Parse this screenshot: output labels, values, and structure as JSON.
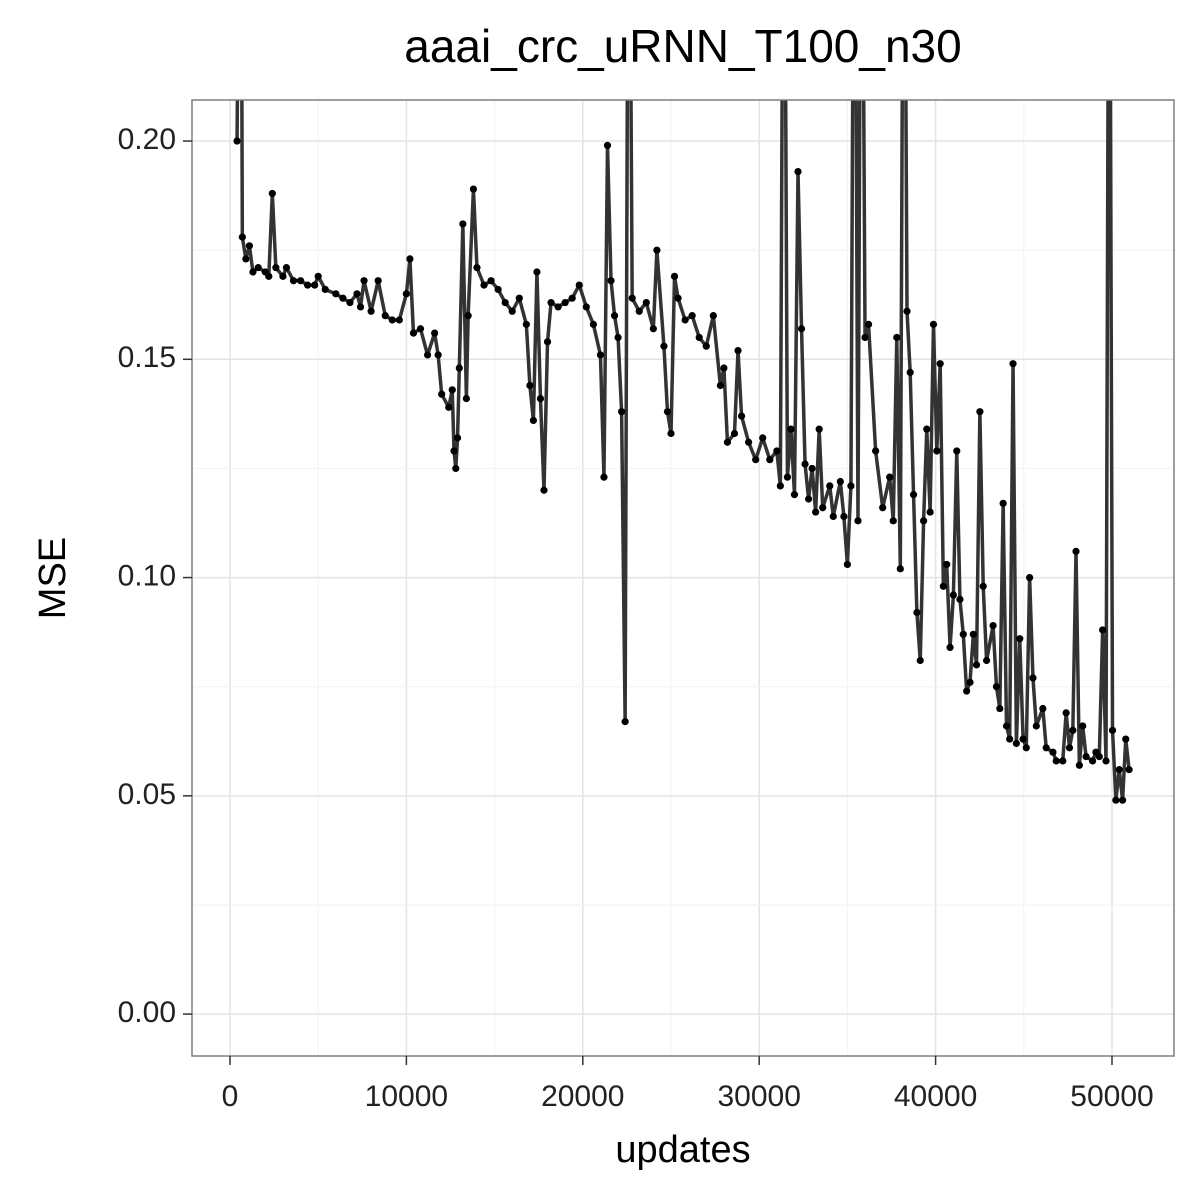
{
  "chart_data": {
    "type": "line",
    "title": "aaai_crc_uRNN_T100_n30",
    "x_label": "updates",
    "y_label": "MSE",
    "xlim": [
      -2154,
      53515
    ],
    "ylim": [
      -0.0096,
      0.2094
    ],
    "xticks": [
      0,
      10000,
      20000,
      30000,
      40000,
      50000
    ],
    "yticks": [
      {
        "value": 0,
        "label": "0.00"
      },
      {
        "value": 0.05,
        "label": "0.05"
      },
      {
        "value": 0.1,
        "label": "0.10"
      },
      {
        "value": 0.15,
        "label": "0.15"
      },
      {
        "value": 0.2,
        "label": "0.20"
      }
    ],
    "grid": true,
    "line_color": "#333333",
    "point_color": "#000000",
    "x": [
      400,
      600,
      700,
      900,
      1100,
      1300,
      1600,
      2000,
      2200,
      2400,
      2600,
      3000,
      3200,
      3600,
      4000,
      4400,
      4800,
      5000,
      5400,
      6000,
      6400,
      6800,
      7200,
      7400,
      7600,
      8000,
      8400,
      8800,
      9200,
      9600,
      10000,
      10200,
      10400,
      10800,
      11200,
      11600,
      11800,
      12000,
      12400,
      12600,
      12700,
      12800,
      12900,
      13000,
      13200,
      13400,
      13500,
      13800,
      14000,
      14400,
      14800,
      15200,
      15600,
      16000,
      16400,
      16800,
      17000,
      17200,
      17400,
      17600,
      17800,
      18000,
      18200,
      18600,
      19000,
      19400,
      19800,
      20200,
      20600,
      21000,
      21200,
      21400,
      21600,
      21800,
      22000,
      22200,
      22400,
      22600,
      22800,
      23200,
      23600,
      24000,
      24200,
      24600,
      24800,
      25000,
      25200,
      25400,
      25800,
      26200,
      26600,
      27000,
      27400,
      27800,
      28000,
      28200,
      28600,
      28800,
      29000,
      29400,
      29800,
      30200,
      30600,
      31000,
      31200,
      31400,
      31600,
      31800,
      32000,
      32200,
      32400,
      32600,
      32800,
      33000,
      33200,
      33400,
      33600,
      34000,
      34200,
      34600,
      34800,
      35000,
      35200,
      35400,
      35600,
      35800,
      36000,
      36200,
      36600,
      37000,
      37400,
      37600,
      37800,
      38000,
      38200,
      38380,
      38560,
      38750,
      38940,
      39130,
      39320,
      39500,
      39690,
      39880,
      40070,
      40260,
      40440,
      40630,
      40820,
      41010,
      41200,
      41380,
      41570,
      41760,
      41950,
      42140,
      42320,
      42510,
      42700,
      42890,
      43260,
      43450,
      43640,
      43830,
      44020,
      44200,
      44390,
      44580,
      44770,
      44960,
      45140,
      45330,
      45520,
      45710,
      46080,
      46270,
      46650,
      46840,
      47210,
      47400,
      47590,
      47780,
      47960,
      48150,
      48340,
      48530,
      48900,
      49090,
      49280,
      49470,
      49660,
      49840,
      50030,
      50220,
      50410,
      50600,
      50780,
      50970
    ],
    "values": [
      0.2,
      0.3,
      0.178,
      0.173,
      0.176,
      0.17,
      0.171,
      0.17,
      0.169,
      0.188,
      0.171,
      0.169,
      0.171,
      0.168,
      0.168,
      0.167,
      0.167,
      0.169,
      0.166,
      0.165,
      0.164,
      0.163,
      0.165,
      0.162,
      0.168,
      0.161,
      0.168,
      0.16,
      0.159,
      0.159,
      0.165,
      0.173,
      0.156,
      0.157,
      0.151,
      0.156,
      0.151,
      0.142,
      0.139,
      0.143,
      0.129,
      0.125,
      0.132,
      0.148,
      0.181,
      0.141,
      0.16,
      0.189,
      0.171,
      0.167,
      0.168,
      0.166,
      0.163,
      0.161,
      0.164,
      0.158,
      0.144,
      0.136,
      0.17,
      0.141,
      0.12,
      0.154,
      0.163,
      0.162,
      0.163,
      0.164,
      0.167,
      0.162,
      0.158,
      0.151,
      0.123,
      0.199,
      0.168,
      0.16,
      0.155,
      0.138,
      0.067,
      0.3,
      0.164,
      0.161,
      0.163,
      0.157,
      0.175,
      0.153,
      0.138,
      0.133,
      0.169,
      0.164,
      0.159,
      0.16,
      0.155,
      0.153,
      0.16,
      0.144,
      0.148,
      0.131,
      0.133,
      0.152,
      0.137,
      0.131,
      0.127,
      0.132,
      0.127,
      0.129,
      0.121,
      0.3,
      0.123,
      0.134,
      0.119,
      0.193,
      0.157,
      0.126,
      0.118,
      0.125,
      0.115,
      0.134,
      0.116,
      0.121,
      0.114,
      0.122,
      0.114,
      0.103,
      0.121,
      0.3,
      0.113,
      0.3,
      0.155,
      0.158,
      0.129,
      0.116,
      0.123,
      0.113,
      0.155,
      0.102,
      0.3,
      0.161,
      0.147,
      0.119,
      0.092,
      0.081,
      0.113,
      0.134,
      0.115,
      0.158,
      0.129,
      0.149,
      0.098,
      0.103,
      0.084,
      0.096,
      0.129,
      0.095,
      0.087,
      0.074,
      0.076,
      0.087,
      0.08,
      0.138,
      0.098,
      0.081,
      0.089,
      0.075,
      0.07,
      0.117,
      0.066,
      0.063,
      0.149,
      0.062,
      0.086,
      0.063,
      0.061,
      0.1,
      0.077,
      0.066,
      0.07,
      0.061,
      0.06,
      0.058,
      0.058,
      0.069,
      0.061,
      0.065,
      0.106,
      0.057,
      0.066,
      0.059,
      0.058,
      0.06,
      0.059,
      0.088,
      0.058,
      0.3,
      0.065,
      0.049,
      0.056,
      0.049,
      0.063,
      0.056
    ]
  }
}
